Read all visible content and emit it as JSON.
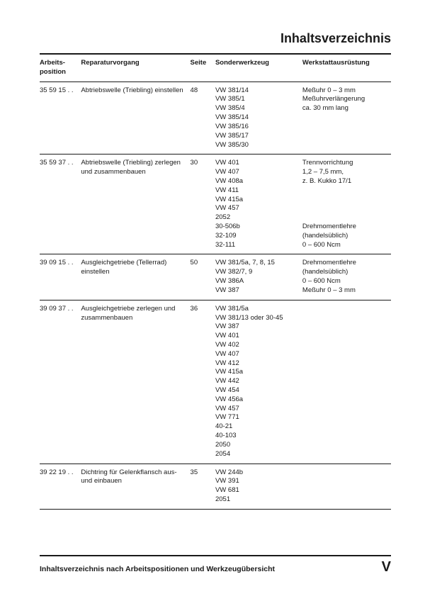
{
  "title": "Inhaltsverzeichnis",
  "headers": {
    "pos": "Arbeits-\nposition",
    "rep": "Reparaturvorgang",
    "page": "Seite",
    "tool": "Sonderwerkzeug",
    "equip": "Werkstattausrüstung"
  },
  "rows": [
    {
      "pos": "35 59 15 . .",
      "rep": "Abtriebswelle (Triebling) einstellen",
      "page": "48",
      "tools": [
        "VW 381/14",
        "VW 385/1",
        "VW 385/4",
        "VW 385/14",
        "VW 385/16",
        "VW 385/17",
        "VW 385/30"
      ],
      "equip": [
        "Meßuhr 0 – 3 mm",
        "Meßuhrverlängerung",
        "ca. 30 mm lang"
      ]
    },
    {
      "pos": "35 59 37 . .",
      "rep": "Abtriebswelle (Triebling) zerlegen und zusammenbauen",
      "page": "30",
      "tools": [
        "VW 401",
        "VW 407",
        "VW 408a",
        "VW 411",
        "VW 415a",
        "VW 457",
        "2052",
        "30-506b",
        "32-109",
        "32-111"
      ],
      "equip": [
        "Trennvorrichtung",
        "1,2 – 7,5 mm,",
        "z. B. Kukko 17/1",
        "",
        "",
        "",
        "",
        "Drehmomentlehre",
        "(handelsüblich)",
        "0 – 600 Ncm"
      ]
    },
    {
      "pos": "39 09 15 . .",
      "rep": "Ausgleichgetriebe (Tellerrad) einstellen",
      "page": "50",
      "tools": [
        "VW 381/5a, 7, 8, 15",
        "VW 382/7, 9",
        "VW 386A",
        "VW 387"
      ],
      "equip": [
        "Drehmomentlehre",
        "(handelsüblich)",
        "0 – 600 Ncm",
        "Meßuhr 0 – 3 mm"
      ]
    },
    {
      "pos": "39 09 37 . .",
      "rep": "Ausgleichgetriebe zerlegen und zusammenbauen",
      "page": "36",
      "tools": [
        "VW 381/5a",
        "VW 381/13 oder 30-45",
        "VW 387",
        "VW 401",
        "VW 402",
        "VW 407",
        "VW 412",
        "VW 415a",
        "VW 442",
        "VW 454",
        "VW 456a",
        "VW 457",
        "VW 771",
        "40-21",
        "40-103",
        "2050",
        "2054"
      ],
      "equip": []
    },
    {
      "pos": "39 22 19 . .",
      "rep": "Dichtring für Gelenkflansch aus- und einbauen",
      "page": "35",
      "tools": [
        "VW 244b",
        "VW 391",
        "VW 681",
        "2051"
      ],
      "equip": []
    }
  ],
  "footer": {
    "text": "Inhaltsverzeichnis nach Arbeitspositionen und Werkzeugübersicht",
    "pagenum": "V"
  }
}
